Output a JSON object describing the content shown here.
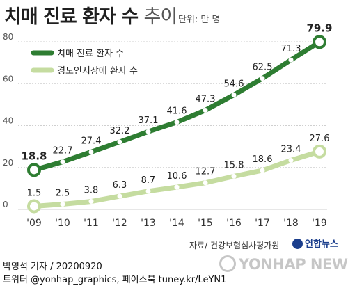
{
  "header": {
    "title_main": "치매 진료 환자 수",
    "title_sub": "추이",
    "unit": "단위: 만 명"
  },
  "chart_data": {
    "type": "line",
    "categories": [
      "'09",
      "'10",
      "'11",
      "'12",
      "'13",
      "'14",
      "'15",
      "'16",
      "'17",
      "'18",
      "'19"
    ],
    "series": [
      {
        "name": "치매 진료 환자 수",
        "color": "#2e7d32",
        "values": [
          18.8,
          22.7,
          27.4,
          32.2,
          37.1,
          41.6,
          47.3,
          54.6,
          62.5,
          71.3,
          79.9
        ],
        "labels": [
          "18.8",
          "22.7",
          "27.4",
          "32.2",
          "37.1",
          "41.6",
          "47.3",
          "54.6",
          "62.5",
          "71.3",
          "79.9"
        ]
      },
      {
        "name": "경도인지장애 환자 수",
        "color": "#c5dca0",
        "values": [
          1.5,
          2.5,
          3.8,
          6.3,
          8.7,
          10.6,
          12.7,
          15.8,
          18.6,
          23.4,
          27.6
        ],
        "labels": [
          "1.5",
          "2.5",
          "3.8",
          "6.3",
          "8.7",
          "10.6",
          "12.7",
          "15.8",
          "18.6",
          "23.4",
          "27.6"
        ]
      }
    ],
    "yticks": [
      "0",
      "20",
      "40",
      "60",
      "80"
    ],
    "ylim": [
      0,
      80
    ],
    "grid": true,
    "legend": "top-left"
  },
  "footer": {
    "source": "자료/ 건강보험심사평가원",
    "brand": "연합뉴스",
    "credit_line1": "박영석 기자 / 20200920",
    "credit_line2": "트위터 @yonhap_graphics, 페이스북 tuney.kr/LeYN1",
    "watermark": "YONHAP NEWS"
  }
}
